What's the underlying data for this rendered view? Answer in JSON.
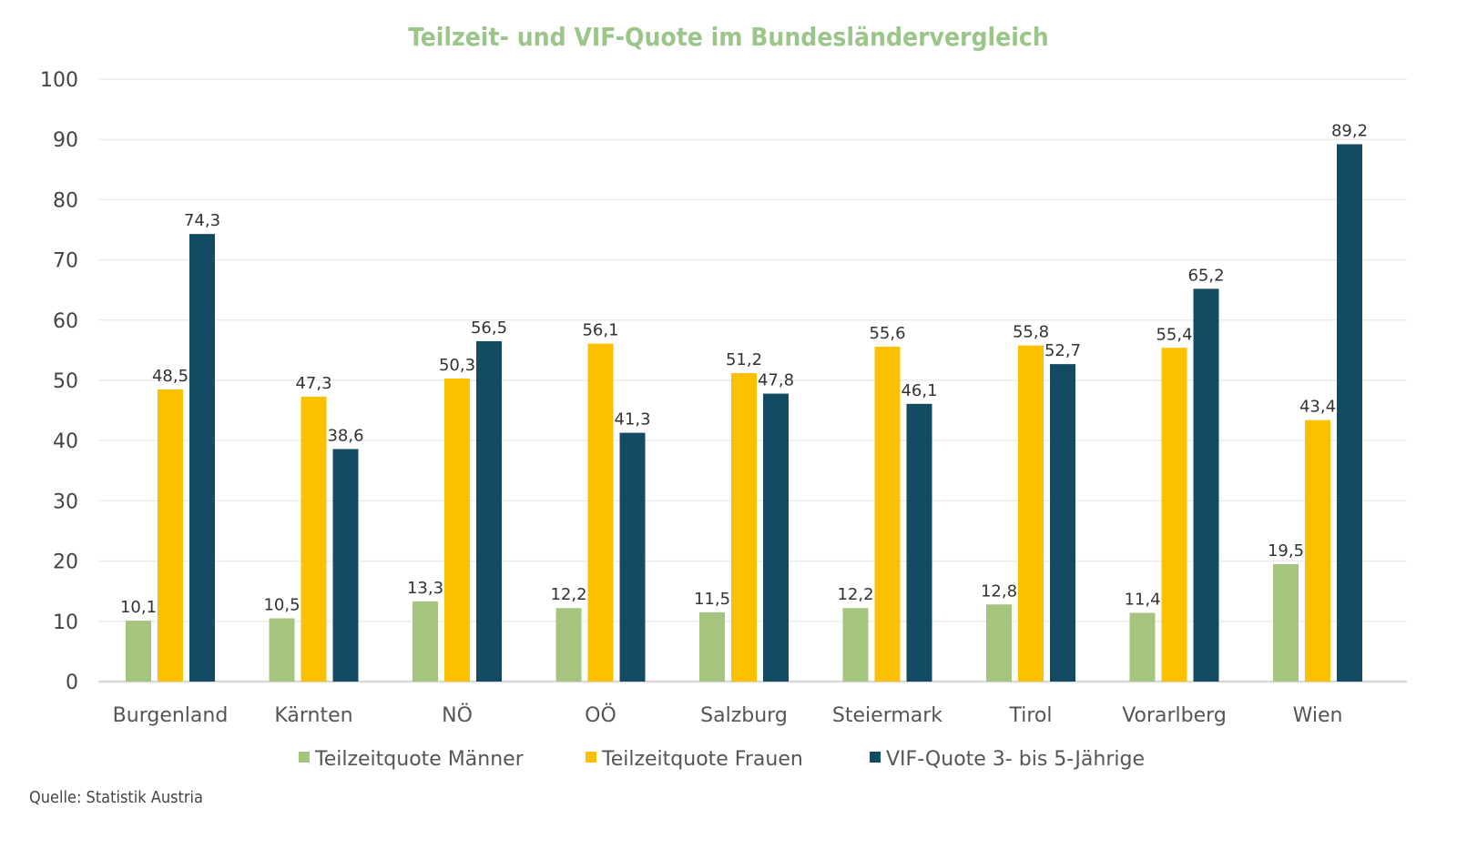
{
  "chart_data": {
    "type": "bar",
    "title": "Teilzeit- und VIF-Quote im Bundesländervergleich",
    "categories": [
      "Burgenland",
      "Kärnten",
      "NÖ",
      "OÖ",
      "Salzburg",
      "Steiermark",
      "Tirol",
      "Vorarlberg",
      "Wien"
    ],
    "series": [
      {
        "name": "Teilzeitquote Männer",
        "color": "#a5c57f",
        "values": [
          10.1,
          10.5,
          13.3,
          12.2,
          11.5,
          12.2,
          12.8,
          11.4,
          19.5
        ],
        "labels": [
          "10,1",
          "10,5",
          "13,3",
          "12,2",
          "11,5",
          "12,2",
          "12,8",
          "11,4",
          "19,5"
        ]
      },
      {
        "name": "Teilzeitquote Frauen",
        "color": "#fbc000",
        "values": [
          48.5,
          47.3,
          50.3,
          56.1,
          51.2,
          55.6,
          55.8,
          55.4,
          43.4
        ],
        "labels": [
          "48,5",
          "47,3",
          "50,3",
          "56,1",
          "51,2",
          "55,6",
          "55,8",
          "55,4",
          "43,4"
        ]
      },
      {
        "name": "VIF-Quote 3- bis 5-Jährige",
        "color": "#134b63",
        "values": [
          74.3,
          38.6,
          56.5,
          41.3,
          47.8,
          46.1,
          52.7,
          65.2,
          89.2
        ],
        "labels": [
          "74,3",
          "38,6",
          "56,5",
          "41,3",
          "47,8",
          "46,1",
          "52,7",
          "65,2",
          "89,2"
        ]
      }
    ],
    "yticks": [
      "0",
      "10",
      "20",
      "30",
      "40",
      "50",
      "60",
      "70",
      "80",
      "90",
      "100"
    ],
    "ylim": [
      0,
      100
    ],
    "grid": true,
    "legend": "bottom",
    "source": "Quelle: Statistik Austria"
  }
}
